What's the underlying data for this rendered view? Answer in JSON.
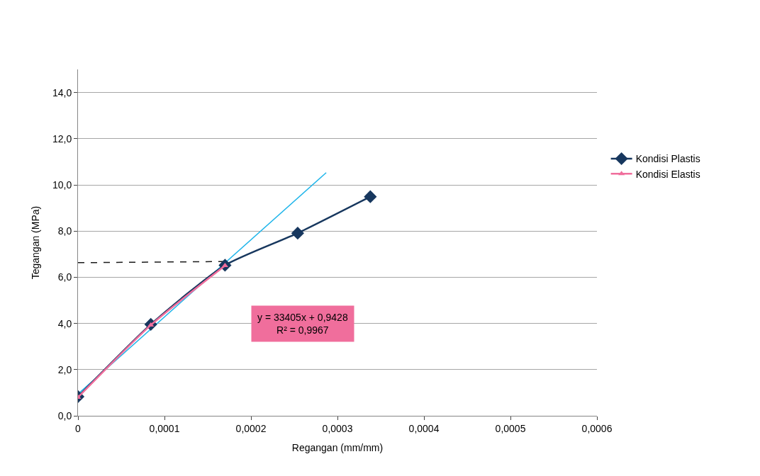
{
  "chart_data": {
    "type": "line",
    "xlabel": "Regangan (mm/mm)",
    "ylabel": "Tegangan (MPa)",
    "xlim": [
      0,
      0.0006
    ],
    "ylim": [
      0,
      15
    ],
    "xticks": [
      0,
      {
        "value": 0.0001,
        "label": "0,0001"
      },
      {
        "value": 0.0002,
        "label": "0,0002"
      },
      {
        "value": 0.0003,
        "label": "0,0003"
      },
      {
        "value": 0.0004,
        "label": "0,0004"
      },
      {
        "value": 0.0005,
        "label": "0,0005"
      },
      {
        "value": 0.0006,
        "label": "0,0006"
      }
    ],
    "yticks": [
      {
        "value": 0,
        "label": "0,0"
      },
      {
        "value": 2,
        "label": "2,0"
      },
      {
        "value": 4,
        "label": "4,0"
      },
      {
        "value": 6,
        "label": "6,0"
      },
      {
        "value": 8,
        "label": "8,0"
      },
      {
        "value": 10,
        "label": "10,0"
      },
      {
        "value": 12,
        "label": "12,0"
      },
      {
        "value": 14,
        "label": "14,0"
      }
    ],
    "grid": "y",
    "legend": "right",
    "series": [
      {
        "type": "line",
        "color": "#1a1a1a",
        "line_style": "dashed",
        "marker": "none",
        "x": [
          0,
          0.00017
        ],
        "values": [
          6.63,
          6.68
        ]
      },
      {
        "type": "line",
        "color": "#1fb5ea",
        "marker": "none",
        "x": [
          0,
          0.000287
        ],
        "values": [
          0.94,
          10.53
        ]
      },
      {
        "name": "Kondisi Plastis",
        "color": "#17375e",
        "marker": "diamond",
        "x": [
          0,
          8.42e-05,
          0.00017,
          0.000254,
          0.000338
        ],
        "values": [
          0.83,
          3.96,
          6.52,
          7.91,
          9.49
        ]
      },
      {
        "name": "Kondisi Elastis",
        "color": "#f06e9c",
        "marker": "triangle",
        "x": [
          0,
          8.42e-05,
          0.00017
        ],
        "values": [
          0.8,
          3.93,
          6.5
        ]
      }
    ],
    "annotations": [
      "y = 33405x + 0,9428\nR² = 0,9967"
    ]
  }
}
